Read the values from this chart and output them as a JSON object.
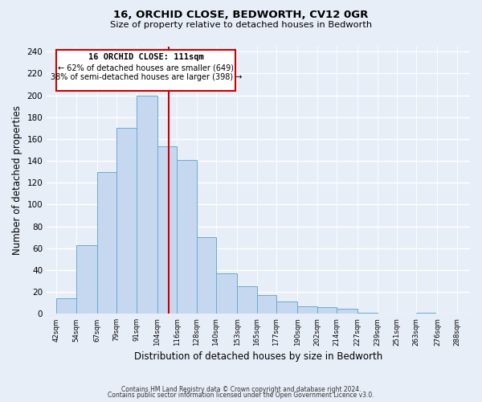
{
  "title1": "16, ORCHID CLOSE, BEDWORTH, CV12 0GR",
  "title2": "Size of property relative to detached houses in Bedworth",
  "xlabel": "Distribution of detached houses by size in Bedworth",
  "ylabel": "Number of detached properties",
  "bar_left_edges": [
    42,
    54,
    67,
    79,
    91,
    104,
    116,
    128,
    140,
    153,
    165,
    177,
    190,
    202,
    214,
    227,
    239,
    251,
    263,
    276
  ],
  "bar_heights": [
    14,
    63,
    130,
    170,
    200,
    153,
    141,
    70,
    37,
    25,
    17,
    11,
    7,
    6,
    5,
    1,
    0,
    0,
    1
  ],
  "bar_widths": [
    12,
    13,
    12,
    12,
    13,
    12,
    12,
    12,
    13,
    12,
    12,
    13,
    12,
    12,
    13,
    12,
    12,
    12,
    12
  ],
  "tick_labels": [
    "42sqm",
    "54sqm",
    "67sqm",
    "79sqm",
    "91sqm",
    "104sqm",
    "116sqm",
    "128sqm",
    "140sqm",
    "153sqm",
    "165sqm",
    "177sqm",
    "190sqm",
    "202sqm",
    "214sqm",
    "227sqm",
    "239sqm",
    "251sqm",
    "263sqm",
    "276sqm",
    "288sqm"
  ],
  "tick_positions": [
    42,
    54,
    67,
    79,
    91,
    104,
    116,
    128,
    140,
    153,
    165,
    177,
    190,
    202,
    214,
    227,
    239,
    251,
    263,
    276,
    288
  ],
  "bar_color": "#c5d8f0",
  "bar_edge_color": "#6aaad4",
  "vline_x": 111,
  "vline_color": "#cc0000",
  "annotation_title": "16 ORCHID CLOSE: 111sqm",
  "annotation_line1": "← 62% of detached houses are smaller (649)",
  "annotation_line2": "38% of semi-detached houses are larger (398) →",
  "box_edge_color": "#cc0000",
  "ylim": [
    0,
    245
  ],
  "yticks": [
    0,
    20,
    40,
    60,
    80,
    100,
    120,
    140,
    160,
    180,
    200,
    220,
    240
  ],
  "footer1": "Contains HM Land Registry data © Crown copyright and database right 2024.",
  "footer2": "Contains public sector information licensed under the Open Government Licence v3.0.",
  "bg_color": "#e8eef8",
  "grid_color": "#c8d4e8"
}
